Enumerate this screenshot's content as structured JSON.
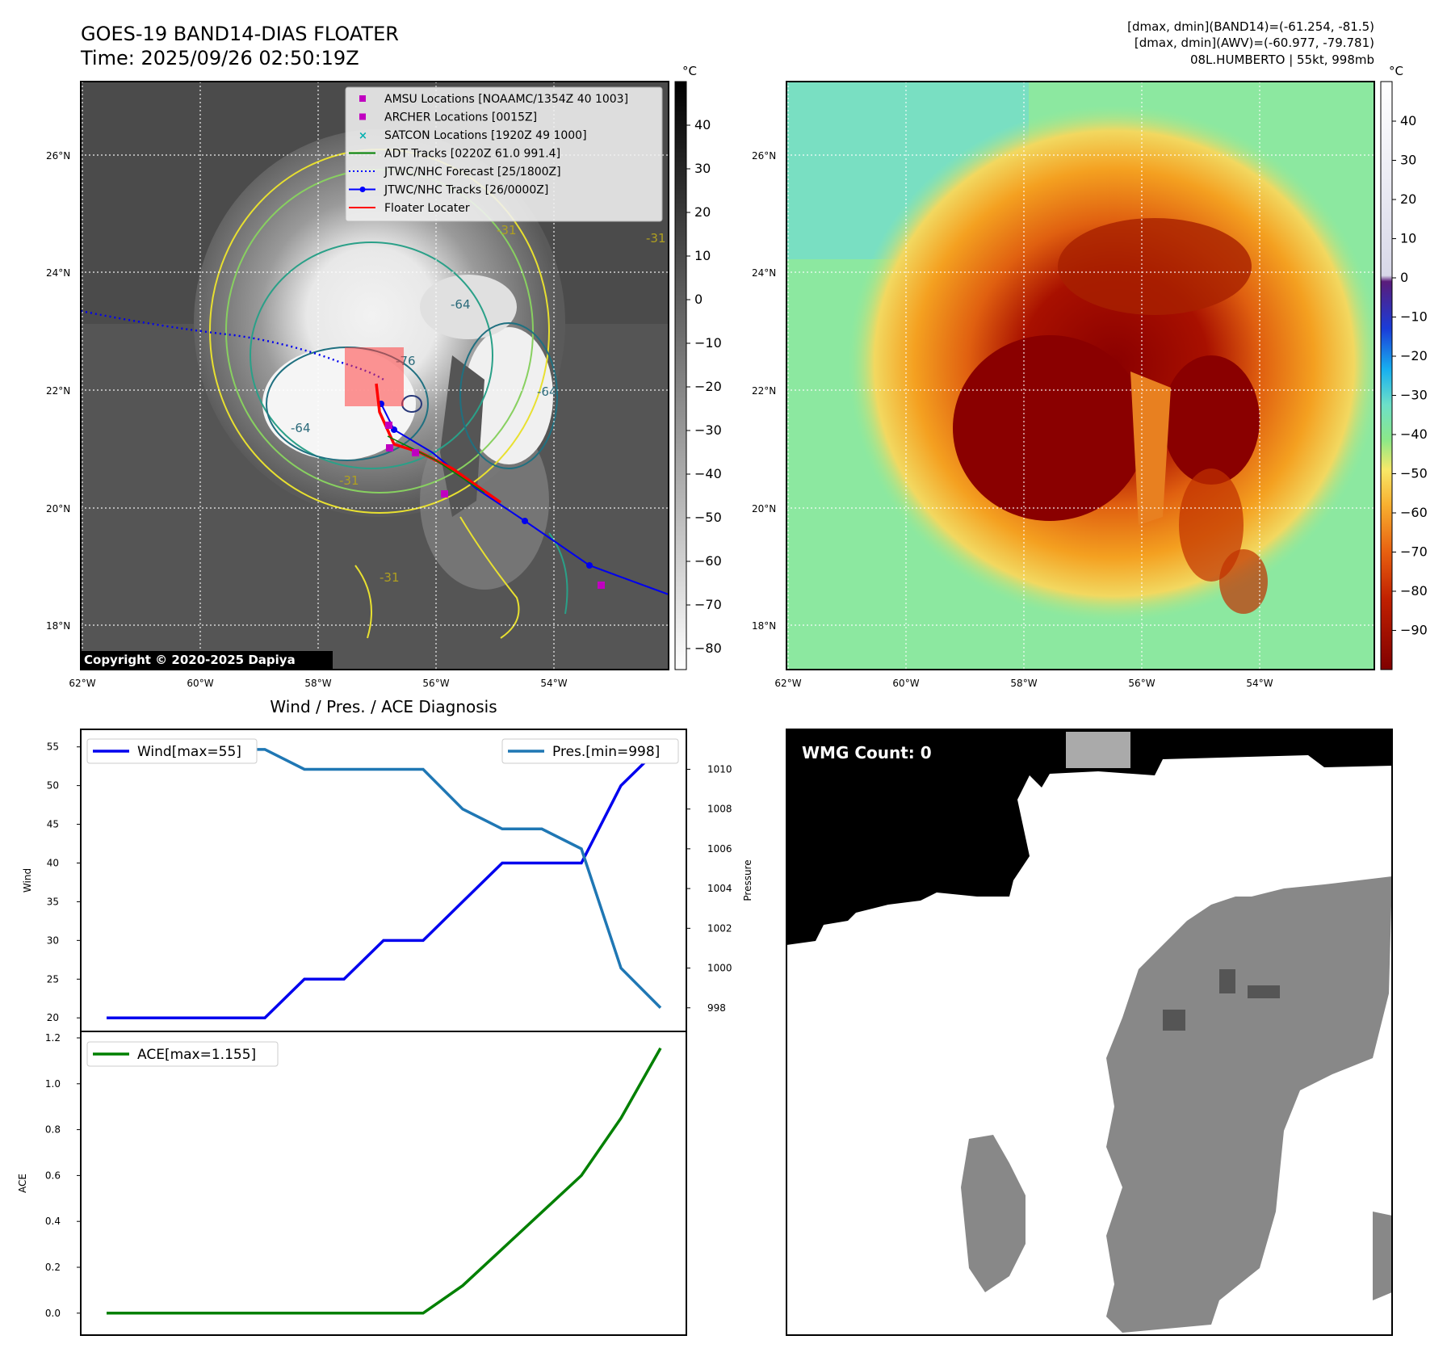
{
  "title_main": "GOES-19 BAND14-DIAS FLOATER",
  "title_time": "Time: 2025/09/26 02:50:19Z",
  "info_lines": [
    "[dmax, dmin](BAND14)=(-61.254, -81.5)",
    "[dmax, dmin](AWV)=(-60.977, -79.781)",
    "08L.HUMBERTO | 55kt, 998mb"
  ],
  "copyright": "Copyright © 2020-2025 Dapiya",
  "wmg_label": "WMG Count: 0",
  "diag_title": "Wind / Pres. / ACE Diagnosis",
  "unit_c": "°C",
  "lon_ticks": [
    "62°W",
    "60°W",
    "58°W",
    "56°W",
    "54°W"
  ],
  "lat_ticks": [
    "26°N",
    "24°N",
    "22°N",
    "20°N",
    "18°N"
  ],
  "cbar1_ticks": [
    "40",
    "30",
    "20",
    "10",
    "0",
    "−10",
    "−20",
    "−30",
    "−40",
    "−50",
    "−60",
    "−70",
    "−80"
  ],
  "cbar2_ticks": [
    "40",
    "30",
    "20",
    "10",
    "0",
    "−10",
    "−20",
    "−30",
    "−40",
    "−50",
    "−60",
    "−70",
    "−80",
    "−90"
  ],
  "contour_labels": [
    "-76",
    "-64",
    "-64",
    "-64",
    "-31",
    "-31",
    "-31",
    "-31"
  ],
  "legend": [
    {
      "label": "AMSU Locations [NOAAMC/1354Z 40 1003]",
      "color": "#c000c0",
      "kind": "square"
    },
    {
      "label": "ARCHER Locations [0015Z]",
      "color": "#c000c0",
      "kind": "square"
    },
    {
      "label": "SATCON Locations [1920Z 49 1000]",
      "color": "#00b0b0",
      "kind": "x"
    },
    {
      "label": "ADT Tracks [0220Z 61.0 991.4]",
      "color": "#008000",
      "kind": "line"
    },
    {
      "label": "JTWC/NHC Forecast [25/1800Z]",
      "color": "#0000ff",
      "kind": "dotted"
    },
    {
      "label": "JTWC/NHC Tracks [26/0000Z]",
      "color": "#0000ff",
      "kind": "line-dot"
    },
    {
      "label": "Floater Locater",
      "color": "#ff0000",
      "kind": "line"
    }
  ],
  "chart_data": [
    {
      "type": "line",
      "title": "Wind / Pres. / ACE Diagnosis",
      "ylabel": "Wind",
      "y2label": "Pressure",
      "ylim": [
        19.5,
        55.7
      ],
      "y2lim": [
        997.3,
        1011.4
      ],
      "yticks": [
        "20",
        "25",
        "30",
        "35",
        "40",
        "45",
        "50",
        "55"
      ],
      "y2ticks": [
        "998",
        "1000",
        "1002",
        "1004",
        "1006",
        "1008",
        "1010"
      ],
      "x": [
        0,
        1,
        2,
        3,
        4,
        5,
        6,
        7,
        8,
        9,
        10,
        11,
        12,
        13,
        14
      ],
      "series": [
        {
          "name": "Wind[max=55]",
          "axis": "left",
          "color": "#0000ee",
          "values": [
            20,
            20,
            20,
            20,
            20,
            25,
            25,
            30,
            30,
            35,
            40,
            40,
            40,
            50,
            55
          ]
        },
        {
          "name": "Pres.[min=998]",
          "axis": "right",
          "color": "#1f77b4",
          "values": [
            1011,
            1011,
            1011,
            1011,
            1011,
            1010,
            1010,
            1010,
            1010,
            1008,
            1007,
            1007,
            1006,
            1000,
            998
          ]
        }
      ]
    },
    {
      "type": "line",
      "ylabel": "ACE",
      "ylim": [
        -0.05,
        1.2
      ],
      "yticks": [
        "0.0",
        "0.2",
        "0.4",
        "0.6",
        "0.8",
        "1.0",
        "1.2"
      ],
      "x": [
        0,
        1,
        2,
        3,
        4,
        5,
        6,
        7,
        8,
        9,
        10,
        11,
        12,
        13,
        14
      ],
      "series": [
        {
          "name": "ACE[max=1.155]",
          "color": "#008000",
          "values": [
            0,
            0,
            0,
            0,
            0,
            0,
            0,
            0,
            0,
            0.12,
            0.28,
            0.44,
            0.6,
            0.85,
            1.155
          ]
        }
      ]
    }
  ]
}
